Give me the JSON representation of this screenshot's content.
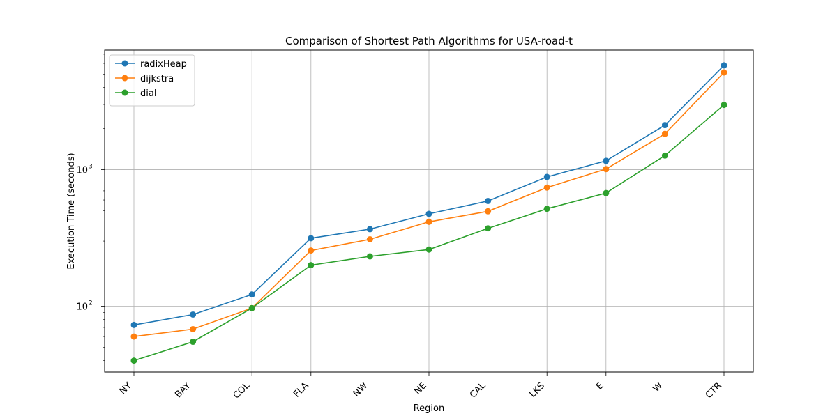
{
  "chart_data": {
    "type": "line",
    "title": "Comparison of Shortest Path Algorithms for USA-road-t",
    "xlabel": "Region",
    "ylabel": "Execution Time (seconds)",
    "yscale": "log",
    "ylim": [
      33,
      7500
    ],
    "y_ticks": [
      {
        "value": 100,
        "base": "10",
        "exp": "2"
      },
      {
        "value": 1000,
        "base": "10",
        "exp": "3"
      }
    ],
    "categories": [
      "NY",
      "BAY",
      "COL",
      "FLA",
      "NW",
      "NE",
      "CAL",
      "LKS",
      "E",
      "W",
      "CTR"
    ],
    "series": [
      {
        "name": "radixHeap",
        "color": "#1f77b4",
        "values": [
          73,
          87,
          122,
          315,
          367,
          475,
          590,
          885,
          1160,
          2120,
          5800
        ]
      },
      {
        "name": "dijkstra",
        "color": "#ff7f0e",
        "values": [
          60,
          68,
          97,
          256,
          309,
          415,
          496,
          740,
          1010,
          1830,
          5150
        ]
      },
      {
        "name": "dial",
        "color": "#2ca02c",
        "values": [
          40,
          55,
          97,
          200,
          232,
          260,
          372,
          517,
          674,
          1270,
          2980
        ]
      }
    ],
    "grid": true,
    "legend_position": "top-left"
  }
}
